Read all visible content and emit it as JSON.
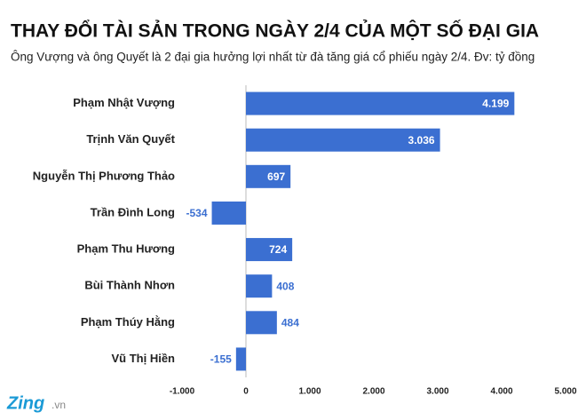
{
  "chart_data": {
    "type": "hbar",
    "title": "THAY ĐỔI TÀI SẢN TRONG NGÀY 2/4 CỦA MỘT SỐ ĐẠI GIA",
    "subtitle": "Ông Vượng và ông Quyết là 2 đại gia hưởng lợi nhất từ đà tăng giá cổ phiếu ngày 2/4. Đv: tỷ đồng",
    "categories": [
      "Phạm Nhật Vượng",
      "Trịnh Văn Quyết",
      "Nguyễn Thị Phương Thảo",
      "Trần Đình Long",
      "Phạm Thu Hương",
      "Bùi Thành Nhơn",
      "Phạm Thúy Hằng",
      "Vũ Thị Hiền"
    ],
    "values": [
      4199,
      3036,
      697,
      -534,
      724,
      408,
      484,
      -155
    ],
    "value_labels": [
      "4.199",
      "3.036",
      "697",
      "-534",
      "724",
      "408",
      "484",
      "-155"
    ],
    "color": "#3b6fd1",
    "xlim": [
      -1000,
      5000
    ],
    "xticks": [
      {
        "value": -1000,
        "label": "-1.000"
      },
      0,
      {
        "value": 1000,
        "label": "1.000"
      },
      {
        "value": 2000,
        "label": "2.000"
      },
      {
        "value": 3000,
        "label": "3.000"
      },
      {
        "value": 4000,
        "label": "4.000"
      },
      {
        "value": 5000,
        "label": "5.000"
      }
    ]
  },
  "logo": {
    "brand": "Zing",
    "domain": ".vn"
  }
}
